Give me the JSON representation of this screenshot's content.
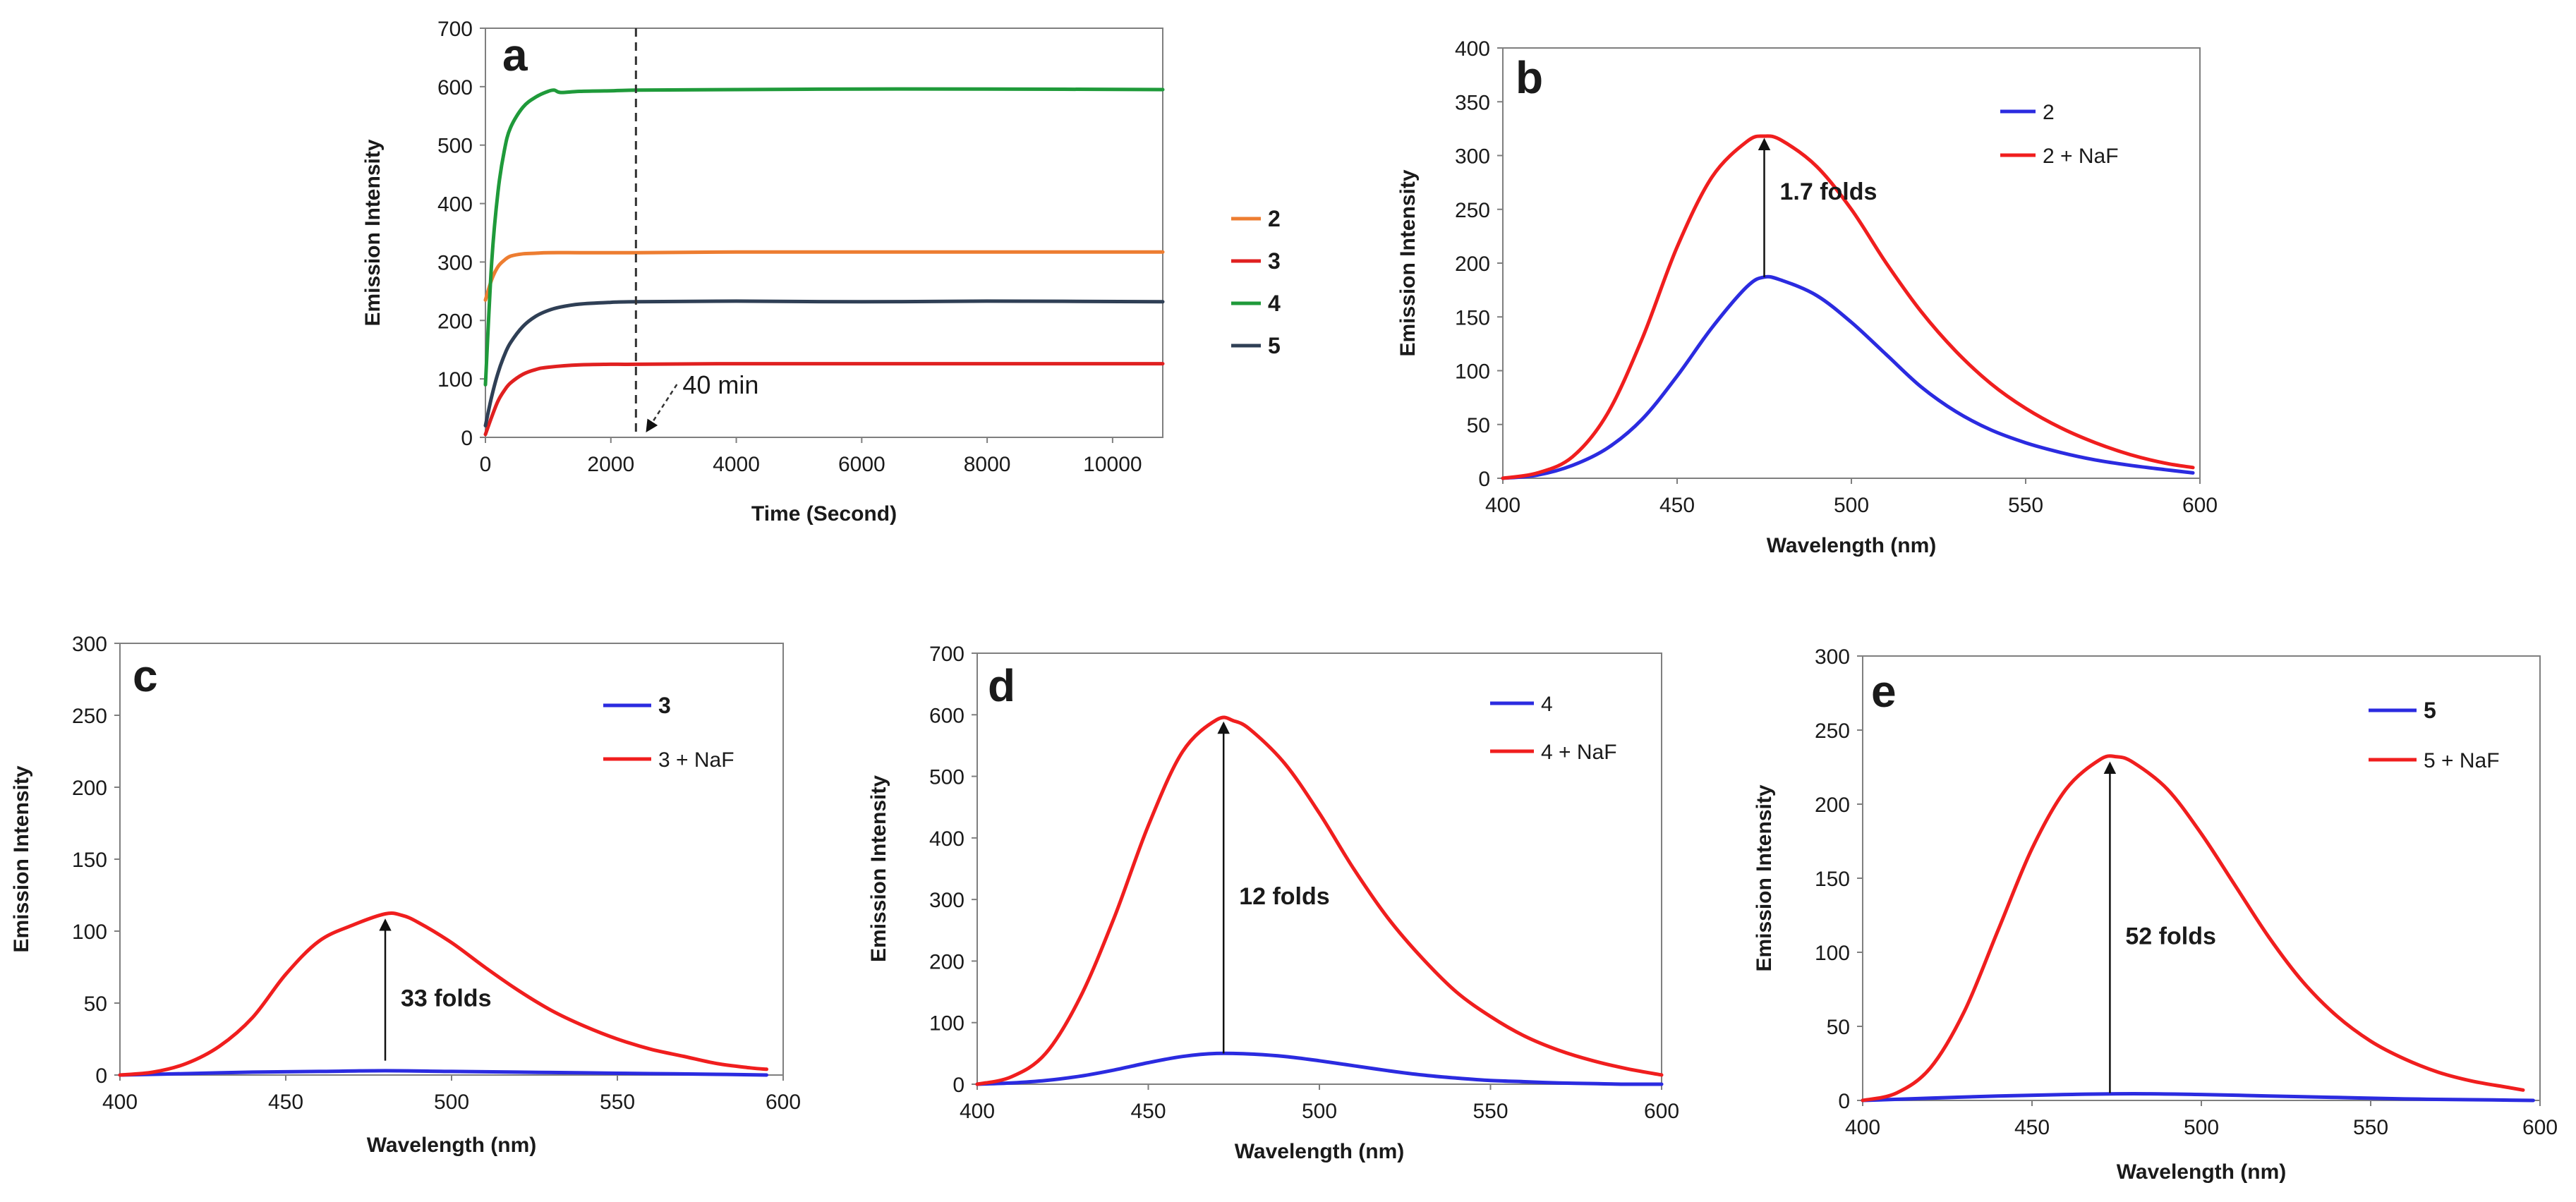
{
  "chart_data": [
    {
      "id": "a",
      "type": "line",
      "panel_label": "a",
      "xlabel": "Time (Second)",
      "ylabel": "Emission Intensity",
      "xlim": [
        0,
        10800
      ],
      "ylim": [
        0,
        700
      ],
      "xticks": [
        0,
        2000,
        4000,
        6000,
        8000,
        10000
      ],
      "yticks": [
        0,
        100,
        200,
        300,
        400,
        500,
        600,
        700
      ],
      "legend_position": "right",
      "legend_style": "bold",
      "vline": {
        "x": 2400,
        "label": "40 min",
        "style": "dashed"
      },
      "series": [
        {
          "name": "2",
          "color": "#ED7D31",
          "x": [
            0,
            100,
            200,
            300,
            400,
            600,
            800,
            1000,
            1500,
            2000,
            2400,
            4000,
            6000,
            8000,
            10800
          ],
          "y": [
            235,
            270,
            292,
            303,
            310,
            314,
            315,
            316,
            316,
            316,
            316,
            317,
            317,
            317,
            317
          ]
        },
        {
          "name": "3",
          "color": "#E02020",
          "x": [
            0,
            100,
            200,
            300,
            400,
            600,
            800,
            1000,
            1500,
            2000,
            2400,
            4000,
            6000,
            8000,
            10800
          ],
          "y": [
            5,
            35,
            62,
            80,
            93,
            108,
            116,
            120,
            124,
            125,
            125,
            126,
            126,
            126,
            126
          ]
        },
        {
          "name": "4",
          "color": "#1F9A3A",
          "x": [
            0,
            100,
            200,
            300,
            400,
            600,
            800,
            1000,
            1100,
            1200,
            1500,
            2000,
            2400,
            4000,
            6000,
            8000,
            10800
          ],
          "y": [
            90,
            300,
            420,
            490,
            530,
            565,
            582,
            592,
            594,
            590,
            592,
            593,
            594,
            595,
            596,
            596,
            595
          ]
        },
        {
          "name": "5",
          "color": "#2F3F55",
          "x": [
            0,
            100,
            200,
            300,
            400,
            600,
            800,
            1000,
            1200,
            1500,
            2000,
            2400,
            4000,
            6000,
            8000,
            10800
          ],
          "y": [
            20,
            70,
            110,
            140,
            162,
            190,
            207,
            217,
            223,
            228,
            231,
            232,
            233,
            232,
            233,
            232
          ]
        }
      ]
    },
    {
      "id": "b",
      "type": "line",
      "panel_label": "b",
      "xlabel": "Wavelength (nm)",
      "ylabel": "Emission Intensity",
      "xlim": [
        400,
        600
      ],
      "ylim": [
        0,
        400
      ],
      "xticks": [
        400,
        450,
        500,
        550,
        600
      ],
      "yticks": [
        0,
        50,
        100,
        150,
        200,
        250,
        300,
        350,
        400
      ],
      "legend_position": "top-right",
      "legend_style": "plain",
      "annotation": {
        "text": "1.7 folds",
        "x": 475,
        "from": 187,
        "to": 318
      },
      "series": [
        {
          "name": "2",
          "color": "#2B2BE0",
          "x": [
            400,
            410,
            420,
            430,
            440,
            450,
            460,
            470,
            475,
            480,
            490,
            500,
            510,
            520,
            530,
            540,
            550,
            560,
            570,
            580,
            590,
            598
          ],
          "y": [
            0,
            3,
            12,
            28,
            55,
            95,
            140,
            178,
            187,
            184,
            170,
            145,
            115,
            85,
            62,
            45,
            33,
            24,
            17,
            12,
            8,
            5
          ]
        },
        {
          "name": "2 + NaF",
          "color": "#F01E1E",
          "x": [
            400,
            410,
            420,
            430,
            440,
            450,
            460,
            470,
            475,
            480,
            490,
            500,
            510,
            520,
            530,
            540,
            550,
            560,
            570,
            580,
            590,
            598
          ],
          "y": [
            0,
            5,
            20,
            60,
            130,
            215,
            280,
            313,
            318,
            314,
            290,
            250,
            200,
            155,
            118,
            88,
            65,
            47,
            33,
            22,
            14,
            10
          ]
        }
      ]
    },
    {
      "id": "c",
      "type": "line",
      "panel_label": "c",
      "xlabel": "Wavelength (nm)",
      "ylabel": "Emission Intensity",
      "xlim": [
        400,
        600
      ],
      "ylim": [
        0,
        300
      ],
      "xticks": [
        400,
        450,
        500,
        550,
        600
      ],
      "yticks": [
        0,
        50,
        100,
        150,
        200,
        250,
        300
      ],
      "legend_position": "top-right",
      "legend_style": "mixed",
      "annotation": {
        "text": "33 folds",
        "x": 480,
        "from": 10,
        "to": 110
      },
      "series": [
        {
          "name": "3",
          "color": "#2B2BE0",
          "x": [
            400,
            420,
            440,
            460,
            480,
            500,
            520,
            540,
            560,
            580,
            595
          ],
          "y": [
            0,
            1,
            2,
            2.5,
            3,
            2.5,
            2,
            1.5,
            1,
            0.5,
            0
          ]
        },
        {
          "name": "3 + NaF",
          "color": "#F01E1E",
          "x": [
            400,
            410,
            420,
            430,
            440,
            450,
            460,
            470,
            480,
            485,
            490,
            500,
            510,
            520,
            530,
            540,
            550,
            560,
            570,
            580,
            590,
            595
          ],
          "y": [
            0,
            2,
            8,
            20,
            40,
            70,
            93,
            104,
            112,
            111,
            106,
            92,
            75,
            59,
            45,
            34,
            25,
            18,
            13,
            8,
            5,
            4
          ]
        }
      ]
    },
    {
      "id": "d",
      "type": "line",
      "panel_label": "d",
      "xlabel": "Wavelength (nm)",
      "ylabel": "Emission Intensity",
      "xlim": [
        400,
        600
      ],
      "ylim": [
        0,
        700
      ],
      "xticks": [
        400,
        450,
        500,
        550,
        600
      ],
      "yticks": [
        0,
        100,
        200,
        300,
        400,
        500,
        600,
        700
      ],
      "legend_position": "top-right",
      "legend_style": "plain",
      "annotation": {
        "text": "12 folds",
        "x": 472,
        "from": 50,
        "to": 592
      },
      "series": [
        {
          "name": "4",
          "color": "#2B2BE0",
          "x": [
            400,
            410,
            420,
            430,
            440,
            450,
            460,
            470,
            480,
            490,
            500,
            510,
            520,
            530,
            540,
            550,
            560,
            570,
            580,
            590,
            600
          ],
          "y": [
            0,
            2,
            6,
            13,
            23,
            35,
            45,
            50,
            49,
            45,
            38,
            30,
            22,
            15,
            10,
            6,
            4,
            2,
            1,
            0,
            0
          ]
        },
        {
          "name": "4 + NaF",
          "color": "#F01E1E",
          "x": [
            400,
            410,
            420,
            430,
            440,
            450,
            460,
            470,
            475,
            480,
            490,
            500,
            510,
            520,
            530,
            540,
            550,
            560,
            570,
            580,
            590,
            600
          ],
          "y": [
            0,
            12,
            50,
            140,
            270,
            420,
            540,
            592,
            590,
            575,
            520,
            440,
            350,
            270,
            205,
            150,
            110,
            78,
            55,
            38,
            25,
            15
          ]
        }
      ]
    },
    {
      "id": "e",
      "type": "line",
      "panel_label": "e",
      "xlabel": "Wavelength (nm)",
      "ylabel": "Emission Intensity",
      "xlim": [
        400,
        600
      ],
      "ylim": [
        0,
        300
      ],
      "xticks": [
        400,
        450,
        500,
        550,
        600
      ],
      "yticks": [
        0,
        50,
        100,
        150,
        200,
        250,
        300
      ],
      "legend_position": "top-right",
      "legend_style": "mixed",
      "annotation": {
        "text": "52 folds",
        "x": 473,
        "from": 5,
        "to": 230
      },
      "series": [
        {
          "name": "5",
          "color": "#2B2BE0",
          "x": [
            400,
            420,
            440,
            460,
            480,
            500,
            520,
            540,
            560,
            580,
            598
          ],
          "y": [
            0,
            1.5,
            3,
            4,
            4.5,
            4,
            3,
            2,
            1,
            0.5,
            0
          ]
        },
        {
          "name": "5 + NaF",
          "color": "#F01E1E",
          "x": [
            400,
            410,
            420,
            430,
            440,
            450,
            460,
            470,
            475,
            480,
            490,
            500,
            510,
            520,
            530,
            540,
            550,
            560,
            570,
            580,
            590,
            595
          ],
          "y": [
            0,
            5,
            22,
            60,
            115,
            170,
            210,
            230,
            232,
            228,
            210,
            180,
            145,
            110,
            80,
            57,
            40,
            28,
            19,
            13,
            9,
            7
          ]
        }
      ]
    }
  ]
}
